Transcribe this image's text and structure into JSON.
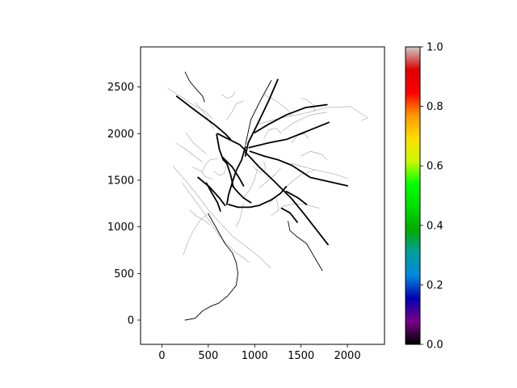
{
  "chart_data": {
    "type": "network-map",
    "title": "",
    "xlabel": "",
    "ylabel": "",
    "xlim": [
      -230,
      2400
    ],
    "ylim": [
      -260,
      2930
    ],
    "xticks": [
      0,
      500,
      1000,
      1500,
      2000
    ],
    "yticks": [
      0,
      500,
      1000,
      1500,
      2000,
      2500
    ],
    "grid": false,
    "colorbar": {
      "colormap": "nipy_spectral",
      "range": [
        0.0,
        1.0
      ],
      "ticks": [
        0.0,
        0.2,
        0.4,
        0.6,
        0.8,
        1.0
      ],
      "tick_labels": [
        "0.0",
        "0.2",
        "0.4",
        "0.6",
        "0.8",
        "1.0"
      ],
      "stops": [
        "#000000",
        "#780088",
        "#0000b0",
        "#0088dd",
        "#009f9f",
        "#00aa00",
        "#00dd00",
        "#00ff00",
        "#ccf800",
        "#ffdd00",
        "#ff9900",
        "#ff0000",
        "#dd0000",
        "#cccccc"
      ]
    },
    "segments_major": [
      [
        [
          250,
          2660
        ],
        [
          300,
          2560
        ],
        [
          350,
          2500
        ],
        [
          395,
          2450
        ],
        [
          440,
          2400
        ],
        [
          460,
          2340
        ]
      ],
      [
        [
          160,
          2400
        ],
        [
          330,
          2270
        ],
        [
          560,
          2100
        ],
        [
          610,
          2060
        ]
      ],
      [
        [
          600,
          2000
        ],
        [
          700,
          1950
        ],
        [
          840,
          1880
        ],
        [
          910,
          1810
        ]
      ],
      [
        [
          1250,
          2580
        ],
        [
          1150,
          2350
        ],
        [
          1030,
          2100
        ],
        [
          930,
          1900
        ],
        [
          900,
          1760
        ]
      ],
      [
        [
          1180,
          2570
        ],
        [
          1060,
          2350
        ],
        [
          960,
          2150
        ],
        [
          900,
          1880
        ]
      ],
      [
        [
          900,
          1860
        ],
        [
          860,
          1720
        ],
        [
          800,
          1600
        ],
        [
          760,
          1480
        ],
        [
          720,
          1350
        ],
        [
          700,
          1240
        ]
      ],
      [
        [
          900,
          1800
        ],
        [
          1050,
          1640
        ],
        [
          1200,
          1500
        ],
        [
          1300,
          1400
        ],
        [
          1400,
          1300
        ],
        [
          1540,
          1130
        ],
        [
          1790,
          810
        ]
      ],
      [
        [
          940,
          1850
        ],
        [
          1150,
          1900
        ],
        [
          1350,
          1940
        ],
        [
          1550,
          2020
        ],
        [
          1800,
          2120
        ]
      ],
      [
        [
          950,
          1810
        ],
        [
          1100,
          1760
        ],
        [
          1250,
          1720
        ],
        [
          1400,
          1660
        ],
        [
          1600,
          1530
        ],
        [
          2000,
          1440
        ]
      ],
      [
        [
          650,
          1750
        ],
        [
          760,
          1640
        ],
        [
          830,
          1530
        ],
        [
          880,
          1440
        ]
      ],
      [
        [
          1000,
          2010
        ],
        [
          1150,
          2100
        ],
        [
          1340,
          2200
        ],
        [
          1550,
          2280
        ],
        [
          1780,
          2310
        ]
      ],
      [
        [
          590,
          1990
        ],
        [
          620,
          1830
        ],
        [
          660,
          1720
        ],
        [
          700,
          1680
        ],
        [
          740,
          1560
        ],
        [
          770,
          1430
        ]
      ],
      [
        [
          760,
          1440
        ],
        [
          820,
          1370
        ],
        [
          880,
          1310
        ],
        [
          960,
          1260
        ]
      ],
      [
        [
          720,
          1240
        ],
        [
          820,
          1210
        ],
        [
          950,
          1210
        ],
        [
          1050,
          1230
        ],
        [
          1180,
          1290
        ],
        [
          1280,
          1360
        ],
        [
          1340,
          1430
        ]
      ],
      [
        [
          500,
          1140
        ],
        [
          580,
          1000
        ],
        [
          680,
          820
        ],
        [
          760,
          720
        ],
        [
          800,
          620
        ],
        [
          820,
          500
        ],
        [
          800,
          370
        ],
        [
          710,
          260
        ],
        [
          610,
          180
        ],
        [
          530,
          150
        ],
        [
          440,
          100
        ],
        [
          360,
          20
        ],
        [
          250,
          0
        ]
      ],
      [
        [
          390,
          1530
        ],
        [
          510,
          1430
        ],
        [
          620,
          1310
        ],
        [
          680,
          1230
        ]
      ],
      [
        [
          480,
          1470
        ],
        [
          540,
          1360
        ],
        [
          600,
          1260
        ],
        [
          630,
          1170
        ]
      ],
      [
        [
          1340,
          1380
        ],
        [
          1470,
          1310
        ],
        [
          1560,
          1240
        ]
      ],
      [
        [
          1360,
          1060
        ],
        [
          1380,
          960
        ],
        [
          1450,
          900
        ],
        [
          1560,
          820
        ],
        [
          1730,
          530
        ]
      ],
      [
        [
          1290,
          1200
        ],
        [
          1380,
          1150
        ],
        [
          1460,
          1050
        ]
      ],
      [
        [
          610,
          2060
        ],
        [
          680,
          2000
        ],
        [
          740,
          1940
        ]
      ]
    ],
    "segments_minor": [
      [
        [
          1030,
          2100
        ],
        [
          1290,
          2170
        ],
        [
          1550,
          2220
        ],
        [
          1780,
          2280
        ],
        [
          2030,
          2290
        ],
        [
          2220,
          2170
        ],
        [
          2150,
          2140
        ]
      ],
      [
        [
          60,
          2490
        ],
        [
          200,
          2400
        ],
        [
          350,
          2300
        ],
        [
          470,
          2240
        ],
        [
          540,
          2160
        ]
      ],
      [
        [
          120,
          1650
        ],
        [
          260,
          1490
        ],
        [
          390,
          1330
        ],
        [
          510,
          1170
        ],
        [
          620,
          1050
        ],
        [
          760,
          900
        ],
        [
          920,
          780
        ],
        [
          1060,
          670
        ],
        [
          1170,
          560
        ]
      ],
      [
        [
          220,
          1470
        ],
        [
          320,
          1330
        ],
        [
          420,
          1200
        ],
        [
          520,
          1050
        ],
        [
          620,
          900
        ],
        [
          780,
          740
        ],
        [
          940,
          620
        ]
      ],
      [
        [
          230,
          700
        ],
        [
          290,
          860
        ],
        [
          350,
          980
        ],
        [
          420,
          1080
        ],
        [
          510,
          1150
        ]
      ],
      [
        [
          1400,
          1680
        ],
        [
          1540,
          1640
        ],
        [
          1700,
          1600
        ],
        [
          1850,
          1570
        ],
        [
          2000,
          1520
        ]
      ],
      [
        [
          1300,
          2030
        ],
        [
          1430,
          2120
        ],
        [
          1600,
          2200
        ],
        [
          1780,
          2230
        ]
      ],
      [
        [
          360,
          2330
        ],
        [
          460,
          2220
        ],
        [
          510,
          2130
        ],
        [
          560,
          2050
        ]
      ],
      [
        [
          260,
          2010
        ],
        [
          340,
          1900
        ],
        [
          410,
          1840
        ],
        [
          480,
          1780
        ]
      ],
      [
        [
          150,
          1900
        ],
        [
          260,
          1830
        ],
        [
          350,
          1760
        ],
        [
          430,
          1700
        ]
      ],
      [
        [
          1100,
          2420
        ],
        [
          1230,
          2350
        ],
        [
          1350,
          2260
        ],
        [
          1400,
          2190
        ]
      ],
      [
        [
          1340,
          1430
        ],
        [
          1420,
          1500
        ],
        [
          1500,
          1560
        ],
        [
          1650,
          1610
        ]
      ],
      [
        [
          1300,
          1220
        ],
        [
          1440,
          1250
        ],
        [
          1540,
          1240
        ],
        [
          1700,
          1200
        ]
      ],
      [
        [
          300,
          1180
        ],
        [
          380,
          1110
        ],
        [
          460,
          1070
        ],
        [
          520,
          1020
        ]
      ],
      [
        [
          800,
          1000
        ],
        [
          840,
          1080
        ],
        [
          860,
          1170
        ],
        [
          880,
          1250
        ]
      ],
      [
        [
          880,
          1310
        ],
        [
          950,
          1400
        ],
        [
          1000,
          1510
        ],
        [
          1030,
          1620
        ]
      ],
      [
        [
          1050,
          1420
        ],
        [
          1140,
          1490
        ],
        [
          1220,
          1560
        ],
        [
          1280,
          1630
        ]
      ],
      [
        [
          1500,
          1760
        ],
        [
          1600,
          1810
        ],
        [
          1720,
          1780
        ],
        [
          1780,
          1720
        ]
      ],
      [
        [
          430,
          1580
        ],
        [
          470,
          1670
        ],
        [
          520,
          1720
        ],
        [
          600,
          1730
        ]
      ],
      [
        [
          1100,
          1950
        ],
        [
          1150,
          2040
        ],
        [
          1230,
          2060
        ],
        [
          1290,
          2000
        ]
      ],
      [
        [
          1400,
          1900
        ],
        [
          1460,
          1980
        ],
        [
          1540,
          2000
        ],
        [
          1580,
          1950
        ]
      ],
      [
        [
          330,
          1640
        ],
        [
          420,
          1600
        ],
        [
          470,
          1540
        ],
        [
          540,
          1510
        ]
      ],
      [
        [
          700,
          2150
        ],
        [
          760,
          2240
        ],
        [
          800,
          2320
        ],
        [
          880,
          2350
        ]
      ],
      [
        [
          1500,
          2380
        ],
        [
          1570,
          2360
        ],
        [
          1640,
          2300
        ],
        [
          1650,
          2240
        ]
      ],
      [
        [
          640,
          2420
        ],
        [
          700,
          2380
        ],
        [
          760,
          2400
        ],
        [
          790,
          2450
        ]
      ],
      [
        [
          1150,
          1250
        ],
        [
          1230,
          1320
        ],
        [
          1260,
          1180
        ],
        [
          1180,
          1120
        ]
      ],
      [
        [
          560,
          1600
        ],
        [
          620,
          1550
        ],
        [
          680,
          1580
        ],
        [
          690,
          1650
        ]
      ],
      [
        [
          980,
          1650
        ],
        [
          1060,
          1580
        ],
        [
          1120,
          1620
        ],
        [
          1100,
          1700
        ]
      ]
    ]
  }
}
